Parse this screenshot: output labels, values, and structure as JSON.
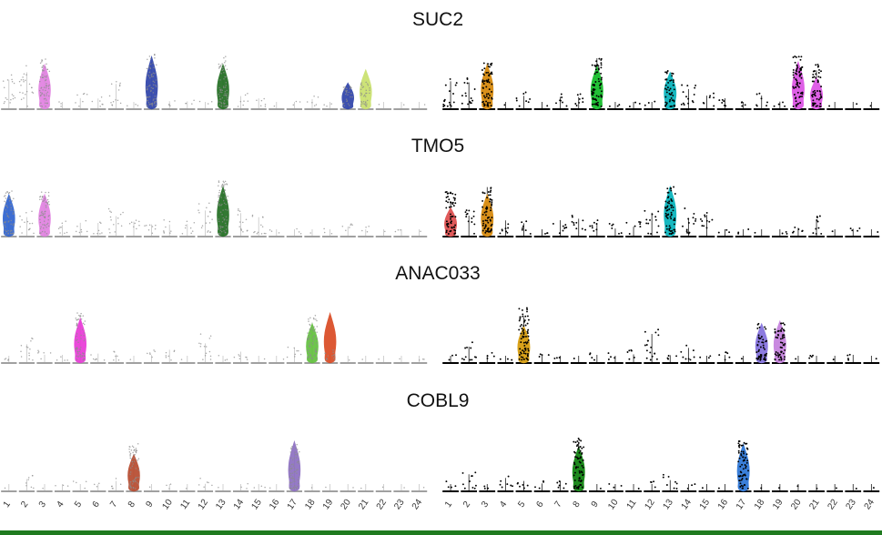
{
  "colors": {
    "background": "#ffffff",
    "faded_baseline": "#a0a0a0",
    "faded_dots": "#8c8c8c",
    "bold_baseline": "#000000",
    "bold_dots": "#000000",
    "bottom_bar": "#1f7a1f"
  },
  "chart_data": {
    "type": "violin",
    "categories": [
      "1",
      "2",
      "3",
      "4",
      "5",
      "6",
      "7",
      "8",
      "9",
      "10",
      "11",
      "12",
      "13",
      "14",
      "15",
      "16",
      "17",
      "18",
      "19",
      "20",
      "21",
      "22",
      "23",
      "24"
    ],
    "panels": [
      {
        "title": "SUC2",
        "left": {
          "dot_density": [
            0.6,
            0.8,
            0.9,
            0.1,
            0.25,
            0.2,
            0.5,
            0.1,
            1.0,
            0.15,
            0.15,
            0.1,
            0.95,
            0.25,
            0.2,
            0.05,
            0.1,
            0.2,
            0.1,
            0.4,
            0.5,
            0.05,
            0.05,
            0.05
          ],
          "violins": [
            {
              "category": "3",
              "color": "#e07ee0",
              "level": 0.85
            },
            {
              "category": "9",
              "color": "#2a3fa8",
              "level": 1.0
            },
            {
              "category": "13",
              "color": "#1d6b1d",
              "level": 0.85
            },
            {
              "category": "20",
              "color": "#2a3fa8",
              "level": 0.5
            },
            {
              "category": "21",
              "color": "#c8e06a",
              "level": 0.75
            }
          ]
        },
        "right": {
          "dot_density": [
            0.6,
            0.55,
            0.85,
            0.05,
            0.3,
            0.05,
            0.25,
            0.3,
            0.95,
            0.1,
            0.1,
            0.1,
            0.7,
            0.5,
            0.25,
            0.2,
            0.15,
            0.25,
            0.15,
            0.95,
            0.8,
            0.05,
            0.05,
            0.05
          ],
          "violins": [
            {
              "category": "3",
              "color": "#d9901a",
              "level": 0.85
            },
            {
              "category": "9",
              "color": "#22c036",
              "level": 0.82
            },
            {
              "category": "13",
              "color": "#17b8c0",
              "level": 0.7
            },
            {
              "category": "20",
              "color": "#de5fe6",
              "level": 0.9
            },
            {
              "category": "21",
              "color": "#de5fe6",
              "level": 0.6
            }
          ]
        }
      },
      {
        "title": "TMO5",
        "left": {
          "dot_density": [
            0.85,
            0.5,
            0.85,
            0.3,
            0.25,
            0.25,
            0.5,
            0.3,
            0.3,
            0.3,
            0.3,
            0.6,
            1.0,
            0.5,
            0.45,
            0.1,
            0.1,
            0.05,
            0.1,
            0.2,
            0.15,
            0.05,
            0.1,
            0.05
          ],
          "violins": [
            {
              "category": "1",
              "color": "#2a5fcf",
              "level": 0.8
            },
            {
              "category": "3",
              "color": "#e07ee0",
              "level": 0.8
            },
            {
              "category": "13",
              "color": "#1d6b1d",
              "level": 0.95
            }
          ]
        },
        "right": {
          "dot_density": [
            0.8,
            0.45,
            0.9,
            0.3,
            0.25,
            0.1,
            0.3,
            0.35,
            0.3,
            0.2,
            0.25,
            0.45,
            0.9,
            0.5,
            0.4,
            0.1,
            0.1,
            0.05,
            0.1,
            0.2,
            0.35,
            0.05,
            0.15,
            0.05
          ],
          "violins": [
            {
              "category": "1",
              "color": "#e05a5a",
              "level": 0.55
            },
            {
              "category": "3",
              "color": "#d9901a",
              "level": 0.8
            },
            {
              "category": "13",
              "color": "#17b8c0",
              "level": 0.95
            }
          ]
        }
      },
      {
        "title": "ANAC033",
        "left": {
          "dot_density": [
            0.15,
            0.45,
            0.2,
            0.15,
            0.9,
            0.2,
            0.2,
            0.05,
            0.2,
            0.25,
            0.05,
            0.5,
            0.1,
            0.25,
            0.05,
            0.05,
            0.3,
            0.85,
            0.2,
            0.05,
            0.05,
            0.05,
            0.05,
            0.1
          ],
          "violins": [
            {
              "category": "5",
              "color": "#e836d6",
              "level": 0.85
            },
            {
              "category": "18",
              "color": "#5fbf3a",
              "level": 0.75
            },
            {
              "category": "19",
              "color": "#d9471f",
              "level": 0.95
            }
          ]
        },
        "right": {
          "dot_density": [
            0.1,
            0.4,
            0.15,
            0.1,
            1.0,
            0.15,
            0.1,
            0.05,
            0.15,
            0.15,
            0.2,
            0.6,
            0.15,
            0.3,
            0.1,
            0.2,
            0.05,
            0.7,
            0.75,
            0.05,
            0.15,
            0.05,
            0.15,
            0.05
          ],
          "violins": [
            {
              "category": "5",
              "color": "#d9a21a",
              "level": 0.7
            },
            {
              "category": "18",
              "color": "#8c7be0",
              "level": 0.75
            },
            {
              "category": "19",
              "color": "#c98ae0",
              "level": 0.8
            }
          ]
        }
      },
      {
        "title": "COBL9",
        "left": {
          "dot_density": [
            0.05,
            0.3,
            0.05,
            0.1,
            0.15,
            0.1,
            0.2,
            0.85,
            0.05,
            0.1,
            0.05,
            0.2,
            0.05,
            0.1,
            0.1,
            0.05,
            0.9,
            0.05,
            0.05,
            0.05,
            0.05,
            0.05,
            0.05,
            0.05
          ],
          "violins": [
            {
              "category": "8",
              "color": "#b5462a",
              "level": 0.7
            },
            {
              "category": "17",
              "color": "#8a6cc0",
              "level": 0.95
            }
          ]
        },
        "right": {
          "dot_density": [
            0.15,
            0.35,
            0.1,
            0.25,
            0.2,
            0.15,
            0.2,
            0.95,
            0.05,
            0.1,
            0.05,
            0.15,
            0.3,
            0.1,
            0.05,
            0.05,
            0.9,
            0.05,
            0.05,
            0.05,
            0.05,
            0.05,
            0.05,
            0.05
          ],
          "violins": [
            {
              "category": "8",
              "color": "#1e8a1e",
              "level": 0.85
            },
            {
              "category": "17",
              "color": "#3a7fd9",
              "level": 0.9
            }
          ]
        }
      }
    ]
  }
}
